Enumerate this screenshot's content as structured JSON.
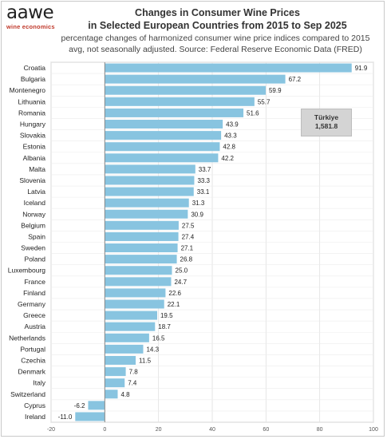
{
  "logo": {
    "word": "aawe",
    "sub": "wine economics"
  },
  "header": {
    "title_line1": "Changes in Consumer Wine Prices",
    "title_line2": "in Selected European Countries from 2015 to Sep 2025",
    "subtitle_line1": "percentage changes of harmonized consumer wine price indices compared to 2015",
    "subtitle_line2": "avg, not seasonally adjusted. Source: Federal Reserve Economic Data (FRED)"
  },
  "callout": {
    "country": "Türkiye",
    "value": "1,581.8"
  },
  "colors": {
    "bar": "#88c4e0",
    "axis": "#555555",
    "grid": "#e0e0e0"
  },
  "chart_data": {
    "type": "bar",
    "orientation": "horizontal",
    "title": "Changes in Consumer Wine Prices in Selected European Countries from 2015 to Sep 2025",
    "xlim": [
      -20,
      100
    ],
    "xticks": [
      -20,
      0,
      20,
      40,
      60,
      80,
      100
    ],
    "grid": true,
    "categories": [
      "Croatia",
      "Bulgaria",
      "Montenegro",
      "Lithuania",
      "Romania",
      "Hungary",
      "Slovakia",
      "Estonia",
      "Albania",
      "Malta",
      "Slovenia",
      "Latvia",
      "Iceland",
      "Norway",
      "Belgium",
      "Spain",
      "Sweden",
      "Poland",
      "Luxembourg",
      "France",
      "Finland",
      "Germany",
      "Greece",
      "Austria",
      "Netherlands",
      "Portugal",
      "Czechia",
      "Denmark",
      "Italy",
      "Switzerland",
      "Cyprus",
      "Ireland"
    ],
    "values": [
      91.9,
      67.2,
      59.9,
      55.7,
      51.6,
      43.9,
      43.3,
      42.8,
      42.2,
      33.7,
      33.3,
      33.1,
      31.3,
      30.9,
      27.5,
      27.4,
      27.1,
      26.8,
      25.0,
      24.7,
      22.6,
      22.1,
      19.5,
      18.7,
      16.5,
      14.3,
      11.5,
      7.8,
      7.4,
      4.8,
      -6.2,
      -11.0
    ],
    "value_labels": [
      "91.9",
      "67.2",
      "59.9",
      "55.7",
      "51.6",
      "43.9",
      "43.3",
      "42.8",
      "42.2",
      "33.7",
      "33.3",
      "33.1",
      "31.3",
      "30.9",
      "27.5",
      "27.4",
      "27.1",
      "26.8",
      "25.0",
      "24.7",
      "22.6",
      "22.1",
      "19.5",
      "18.7",
      "16.5",
      "14.3",
      "11.5",
      "7.8",
      "7.4",
      "4.8",
      "-6.2",
      "-11.0"
    ]
  }
}
